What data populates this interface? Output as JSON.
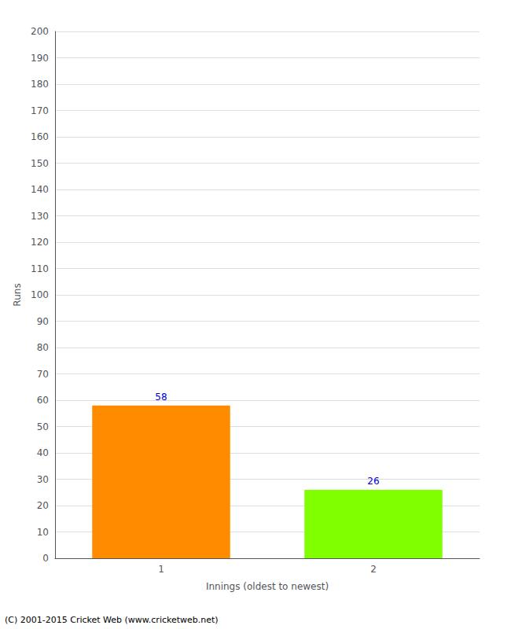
{
  "chart_data": {
    "type": "bar",
    "categories": [
      "1",
      "2"
    ],
    "values": [
      58,
      26
    ],
    "colors": [
      "#FF8C00",
      "#7FFF00"
    ],
    "xlabel": "Innings (oldest to newest)",
    "ylabel": "Runs",
    "ylim": [
      0,
      200
    ],
    "yticks": [
      0,
      10,
      20,
      30,
      40,
      50,
      60,
      70,
      80,
      90,
      100,
      110,
      120,
      130,
      140,
      150,
      160,
      170,
      180,
      190,
      200
    ],
    "grid": true,
    "data_labels": true,
    "annotations": [
      "(C) 2001-2015 Cricket Web (www.cricketweb.net)"
    ]
  }
}
